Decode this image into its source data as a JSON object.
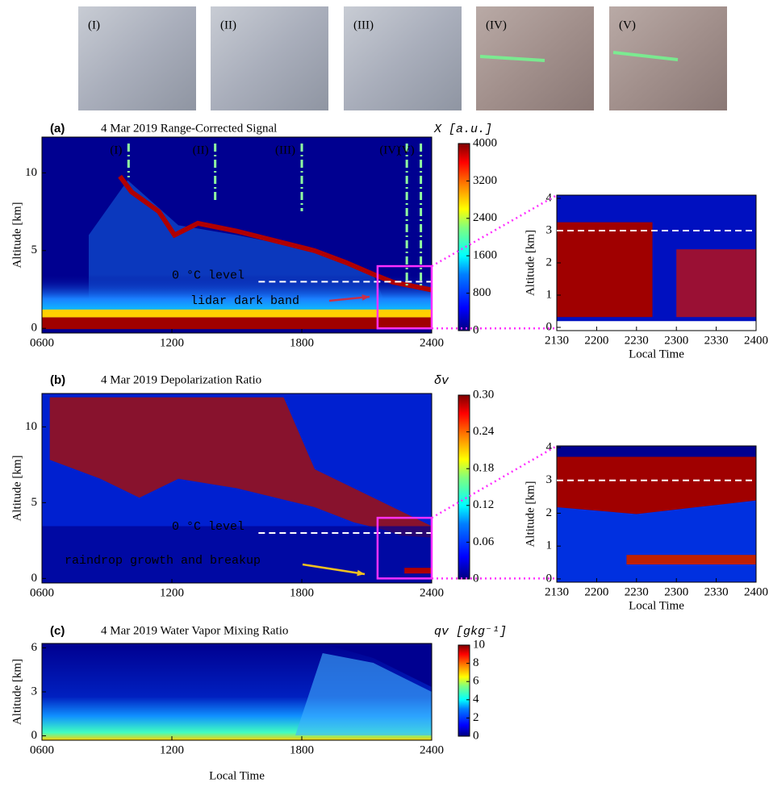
{
  "photo_labels": [
    "(I)",
    "(II)",
    "(III)",
    "(IV)",
    "(V)"
  ],
  "chart_data": [
    {
      "type": "heatmap",
      "panel": "(a)",
      "title": "4 Mar 2019  Range-Corrected Signal",
      "ylabel": "Altitude [km]",
      "xlim": [
        6,
        24
      ],
      "xticks": [
        {
          "value": 6,
          "label": "0600"
        },
        {
          "value": 12,
          "label": "1200"
        },
        {
          "value": 18,
          "label": "1800"
        },
        {
          "value": 24,
          "label": "2400"
        }
      ],
      "ylim": [
        -0.3,
        12.3
      ],
      "yticks": [
        0,
        5,
        10
      ],
      "colormap": "jet",
      "colorbar_label": "X [a.u.]",
      "clim": [
        0,
        4000
      ],
      "cticks": [
        0,
        800,
        1600,
        2400,
        3200,
        4000
      ],
      "markers": [
        {
          "label": "(I)",
          "x": 10
        },
        {
          "label": "(II)",
          "x": 14
        },
        {
          "label": "(III)",
          "x": 18
        },
        {
          "label": "(IV)",
          "x": 22.85
        },
        {
          "label": "(V)",
          "x": 23.5
        }
      ],
      "freezing_level": {
        "label": "0 °C level",
        "y": 3,
        "x": [
          16,
          24
        ]
      },
      "annotation": {
        "text": "lidar dark band",
        "color": "#c8304a"
      }
    },
    {
      "type": "heatmap-inset",
      "ylabel": "Altitude [km]",
      "xlabel": "Local Time",
      "xlim": [
        21.5,
        24
      ],
      "xticks": [
        {
          "value": 21.5,
          "label": "2130"
        },
        {
          "value": 22,
          "label": "2200"
        },
        {
          "value": 22.5,
          "label": "2230"
        },
        {
          "value": 23,
          "label": "2300"
        },
        {
          "value": 23.5,
          "label": "2330"
        },
        {
          "value": 24,
          "label": "2400"
        }
      ],
      "ylim": [
        -0.1,
        4.1
      ],
      "yticks": [
        0,
        1,
        2,
        3,
        4
      ],
      "freezing_level": {
        "y": 3
      }
    },
    {
      "type": "heatmap",
      "panel": "(b)",
      "title": "4 Mar 2019  Depolarization Ratio",
      "ylabel": "Altitude [km]",
      "xlim": [
        6,
        24
      ],
      "xticks": [
        {
          "value": 6,
          "label": "0600"
        },
        {
          "value": 12,
          "label": "1200"
        },
        {
          "value": 18,
          "label": "1800"
        },
        {
          "value": 24,
          "label": "2400"
        }
      ],
      "ylim": [
        -0.3,
        12.2
      ],
      "yticks": [
        0,
        5,
        10
      ],
      "colormap": "jet",
      "colorbar_label": "δv",
      "clim": [
        0,
        0.3
      ],
      "cticks": [
        0,
        0.06,
        0.12,
        0.18,
        0.24,
        {
          "value": 0.3,
          "label": "0.30"
        }
      ],
      "freezing_level": {
        "label": "0 °C level",
        "y": 3,
        "x": [
          16,
          24
        ]
      },
      "annotation": {
        "text": "raindrop growth and breakup",
        "color": "#f0c020"
      }
    },
    {
      "type": "heatmap-inset",
      "ylabel": "Altitude [km]",
      "xlabel": "Local Time",
      "xlim": [
        21.5,
        24
      ],
      "xticks": [
        {
          "value": 21.5,
          "label": "2130"
        },
        {
          "value": 22,
          "label": "2200"
        },
        {
          "value": 22.5,
          "label": "2230"
        },
        {
          "value": 23,
          "label": "2300"
        },
        {
          "value": 23.5,
          "label": "2330"
        },
        {
          "value": 24,
          "label": "2400"
        }
      ],
      "ylim": [
        -0.1,
        4.05
      ],
      "yticks": [
        0,
        1,
        2,
        3,
        4
      ],
      "freezing_level": {
        "y": 3
      }
    },
    {
      "type": "heatmap",
      "panel": "(c)",
      "title": "4 Mar 2019  Water Vapor Mixing Ratio",
      "ylabel": "Altitude [km]",
      "xlabel": "Local Time",
      "xlim": [
        6,
        24
      ],
      "xticks": [
        {
          "value": 6,
          "label": "0600"
        },
        {
          "value": 12,
          "label": "1200"
        },
        {
          "value": 18,
          "label": "1800"
        },
        {
          "value": 24,
          "label": "2400"
        }
      ],
      "ylim": [
        -0.3,
        6.3
      ],
      "yticks": [
        0,
        3,
        6
      ],
      "colormap": "jet",
      "colorbar_label": "qv [gkg⁻¹]",
      "clim": [
        0,
        10
      ],
      "cticks": [
        0,
        2,
        4,
        6,
        8,
        10
      ]
    }
  ]
}
